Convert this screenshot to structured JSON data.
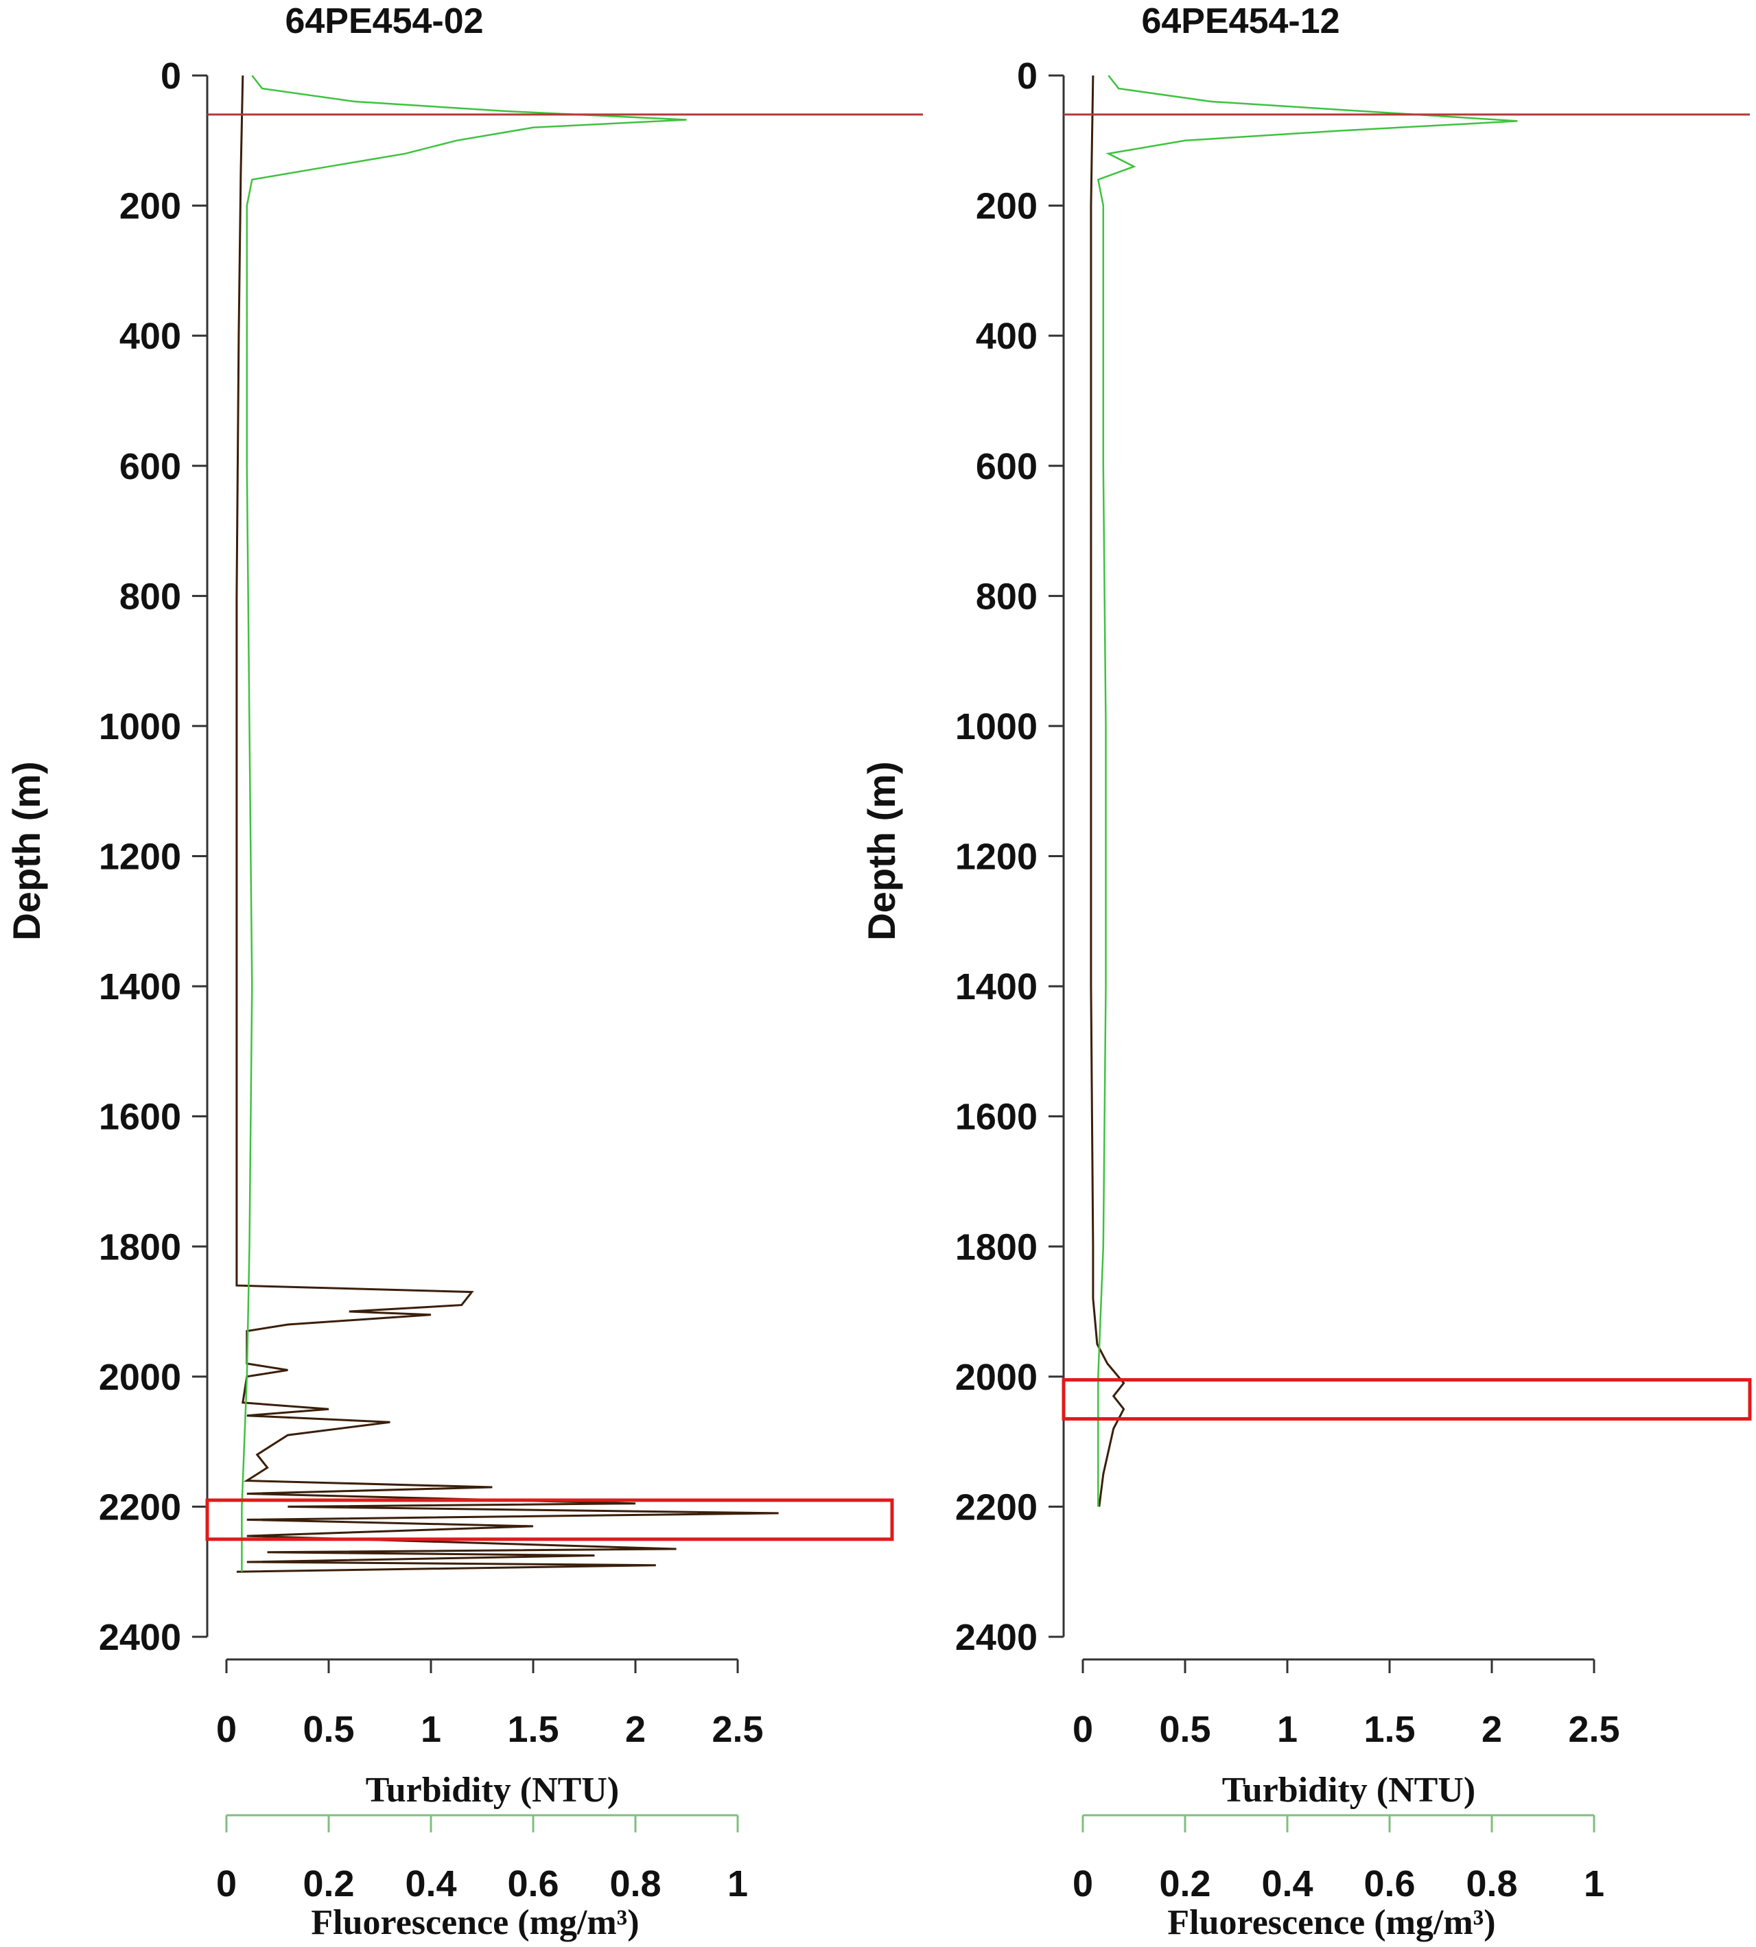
{
  "chart_data": [
    {
      "type": "line",
      "title": "64PE454-02",
      "ylabel": "Depth (m)",
      "ylim": [
        2400,
        0
      ],
      "y_ticks": [
        "0",
        "200",
        "400",
        "600",
        "800",
        "1000",
        "1200",
        "1400",
        "1600",
        "1800",
        "2000",
        "2200",
        "2400"
      ],
      "turbidity_axis": {
        "label": "Turbidity (NTU)",
        "range": [
          0,
          2.5
        ],
        "ticks": [
          "0",
          "0.5",
          "1",
          "1.5",
          "2",
          "2.5"
        ]
      },
      "fluorescence_axis": {
        "label": "Fluorescence (mg/m³)",
        "range": [
          0,
          1
        ],
        "ticks": [
          "0",
          "0.2",
          "0.4",
          "0.6",
          "0.8",
          "1"
        ]
      },
      "reference_depth": 60,
      "highlight_depth_range": [
        2190,
        2250
      ],
      "series": [
        {
          "color": "#3b1f0a",
          "axis": "turbidity",
          "points": [
            [
              0.08,
              0
            ],
            [
              0.07,
              150
            ],
            [
              0.06,
              400
            ],
            [
              0.05,
              800
            ],
            [
              0.05,
              1200
            ],
            [
              0.05,
              1600
            ],
            [
              0.05,
              1860
            ],
            [
              1.2,
              1870
            ],
            [
              1.15,
              1890
            ],
            [
              0.6,
              1900
            ],
            [
              1.0,
              1905
            ],
            [
              0.3,
              1920
            ],
            [
              0.1,
              1930
            ],
            [
              0.1,
              1980
            ],
            [
              0.3,
              1990
            ],
            [
              0.1,
              2000
            ],
            [
              0.08,
              2040
            ],
            [
              0.5,
              2050
            ],
            [
              0.1,
              2060
            ],
            [
              0.8,
              2070
            ],
            [
              0.3,
              2090
            ],
            [
              0.15,
              2120
            ],
            [
              0.2,
              2140
            ],
            [
              0.1,
              2160
            ],
            [
              1.3,
              2170
            ],
            [
              0.1,
              2180
            ],
            [
              2.0,
              2195
            ],
            [
              0.3,
              2200
            ],
            [
              2.7,
              2210
            ],
            [
              0.1,
              2220
            ],
            [
              1.5,
              2230
            ],
            [
              0.1,
              2245
            ],
            [
              2.2,
              2265
            ],
            [
              0.2,
              2270
            ],
            [
              1.8,
              2275
            ],
            [
              0.1,
              2285
            ],
            [
              2.1,
              2290
            ],
            [
              0.05,
              2300
            ]
          ]
        },
        {
          "color": "#3fc23f",
          "axis": "fluorescence",
          "points": [
            [
              0.05,
              0
            ],
            [
              0.07,
              20
            ],
            [
              0.25,
              40
            ],
            [
              0.55,
              55
            ],
            [
              0.9,
              68
            ],
            [
              0.6,
              80
            ],
            [
              0.45,
              100
            ],
            [
              0.35,
              120
            ],
            [
              0.2,
              140
            ],
            [
              0.05,
              160
            ],
            [
              0.04,
              200
            ],
            [
              0.04,
              600
            ],
            [
              0.045,
              1000
            ],
            [
              0.05,
              1400
            ],
            [
              0.045,
              1800
            ],
            [
              0.04,
              2000
            ],
            [
              0.03,
              2200
            ],
            [
              0.03,
              2300
            ]
          ]
        }
      ]
    },
    {
      "type": "line",
      "title": "64PE454-12",
      "ylabel": "Depth (m)",
      "ylim": [
        2400,
        0
      ],
      "y_ticks": [
        "0",
        "200",
        "400",
        "600",
        "800",
        "1000",
        "1200",
        "1400",
        "1600",
        "1800",
        "2000",
        "2200",
        "2400"
      ],
      "turbidity_axis": {
        "label": "Turbidity (NTU)",
        "range": [
          0,
          2.5
        ],
        "ticks": [
          "0",
          "0.5",
          "1",
          "1.5",
          "2",
          "2.5"
        ]
      },
      "fluorescence_axis": {
        "label": "Fluorescence (mg/m³)",
        "range": [
          0,
          1
        ],
        "ticks": [
          "0",
          "0.2",
          "0.4",
          "0.6",
          "0.8",
          "1"
        ]
      },
      "reference_depth": 60,
      "highlight_depth_range": [
        2005,
        2065
      ],
      "series": [
        {
          "color": "#3b1f0a",
          "axis": "turbidity",
          "points": [
            [
              0.05,
              0
            ],
            [
              0.04,
              200
            ],
            [
              0.04,
              600
            ],
            [
              0.04,
              1000
            ],
            [
              0.04,
              1400
            ],
            [
              0.05,
              1800
            ],
            [
              0.05,
              1880
            ],
            [
              0.07,
              1950
            ],
            [
              0.12,
              1980
            ],
            [
              0.2,
              2010
            ],
            [
              0.15,
              2030
            ],
            [
              0.2,
              2050
            ],
            [
              0.15,
              2080
            ],
            [
              0.1,
              2150
            ],
            [
              0.08,
              2200
            ]
          ]
        },
        {
          "color": "#3fc23f",
          "axis": "fluorescence",
          "points": [
            [
              0.05,
              0
            ],
            [
              0.07,
              20
            ],
            [
              0.25,
              40
            ],
            [
              0.55,
              55
            ],
            [
              0.85,
              70
            ],
            [
              0.5,
              85
            ],
            [
              0.2,
              100
            ],
            [
              0.05,
              120
            ],
            [
              0.1,
              140
            ],
            [
              0.03,
              160
            ],
            [
              0.04,
              200
            ],
            [
              0.04,
              600
            ],
            [
              0.045,
              1000
            ],
            [
              0.045,
              1400
            ],
            [
              0.04,
              1800
            ],
            [
              0.03,
              2000
            ],
            [
              0.03,
              2200
            ]
          ]
        }
      ]
    }
  ]
}
